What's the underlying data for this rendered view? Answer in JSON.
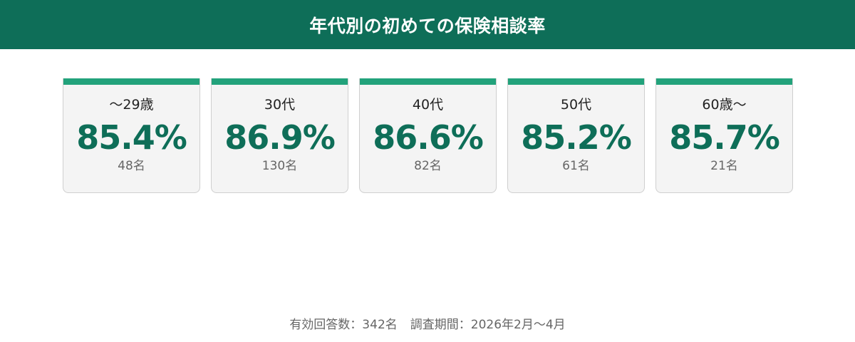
{
  "header": {
    "title": "年代別の初めての保険相談率"
  },
  "colors": {
    "header_bg": "#0e6e58",
    "card_accent": "#22a27b",
    "value_text": "#0e6e58"
  },
  "chart_data": {
    "type": "table",
    "title": "年代別の初めての保険相談率",
    "categories": [
      "〜29歳",
      "30代",
      "40代",
      "50代",
      "60歳〜"
    ],
    "series": [
      {
        "name": "",
        "values": [
          85.4,
          86.9,
          86.6,
          85.2,
          85.7
        ]
      }
    ],
    "cards": [
      {
        "label": "〜29歳",
        "value": "85.4%",
        "count": "48名"
      },
      {
        "label": "30代",
        "value": "86.9%",
        "count": "130名"
      },
      {
        "label": "40代",
        "value": "86.6%",
        "count": "82名"
      },
      {
        "label": "50代",
        "value": "85.2%",
        "count": "61名"
      },
      {
        "label": "60歳〜",
        "value": "85.7%",
        "count": "21名"
      }
    ]
  },
  "footer": {
    "responses": "有効回答数：342名",
    "period": "調査期間：2026年2月〜4月"
  }
}
